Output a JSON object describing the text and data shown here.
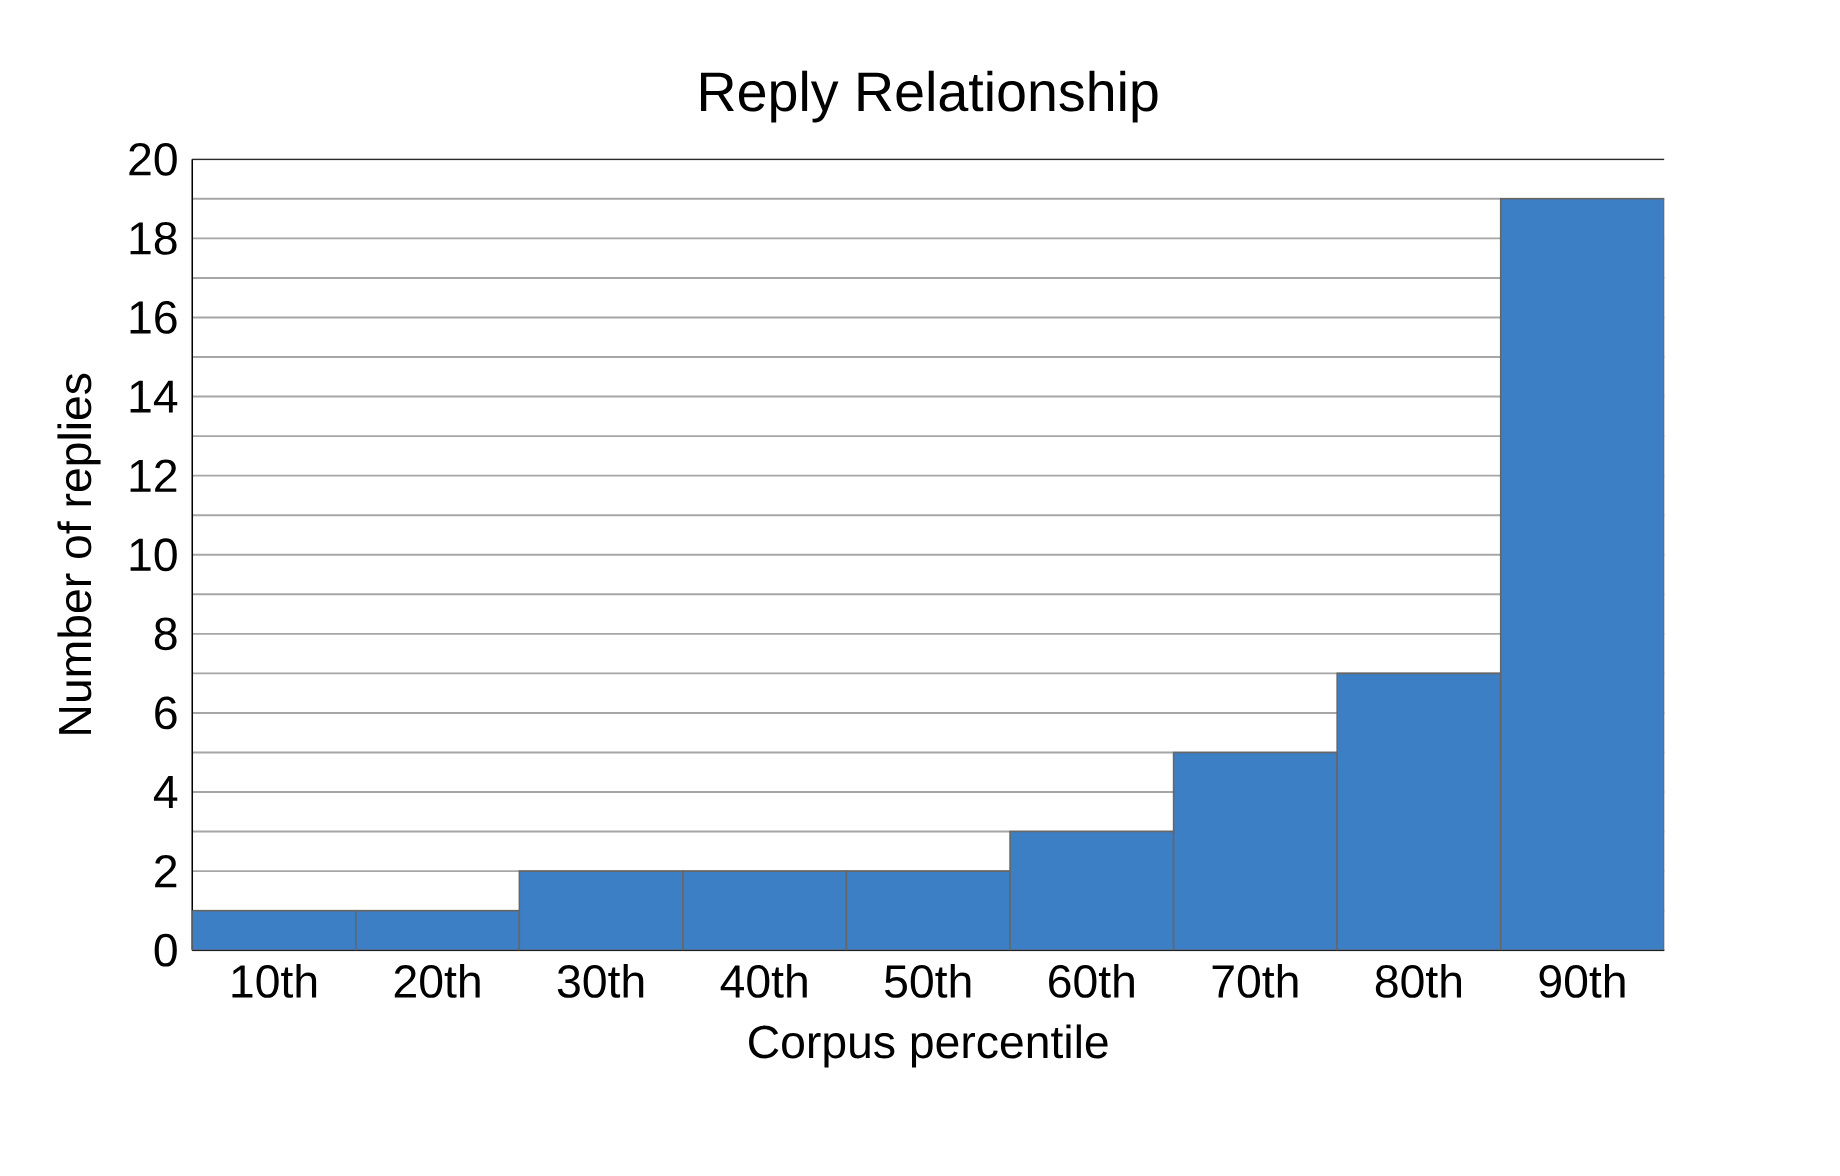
{
  "chart_data": {
    "type": "bar",
    "title": "Reply Relationship",
    "xlabel": "Corpus percentile",
    "ylabel": "Number of replies",
    "categories": [
      "10th",
      "20th",
      "30th",
      "40th",
      "50th",
      "60th",
      "70th",
      "80th",
      "90th"
    ],
    "values": [
      1,
      1,
      2,
      2,
      2,
      3,
      5,
      7,
      19
    ],
    "color": "#3d7fc4",
    "ylim": [
      0,
      20
    ],
    "yticks": [
      0,
      2,
      4,
      6,
      8,
      10,
      12,
      14,
      16,
      18,
      20
    ],
    "grid": "y"
  }
}
